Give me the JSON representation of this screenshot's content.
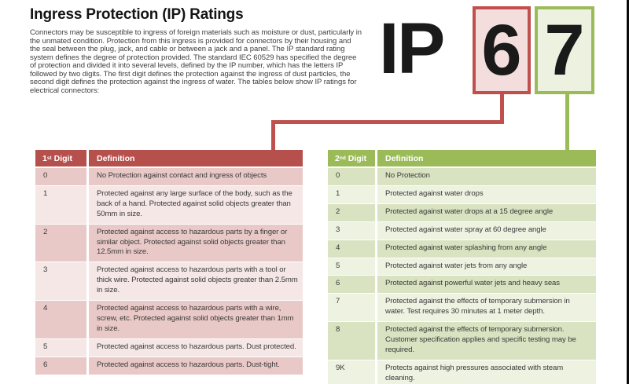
{
  "page": {
    "title": "Ingress Protection (IP) Ratings",
    "intro": "Connectors may be susceptible to ingress of foreign materials such as moisture or dust, particularly in the unmated condition.  Protection from this ingress is provided for connectors by their housing and the seal between the plug, jack, and cable or between a jack and a panel. The IP standard rating system defines the degree of protection provided. The standard IEC 60529 has specified the degree of protection and divided it into several levels, defined by the IP number, which has the letters IP followed by two digits.  The first digit defines the protection against the ingress of dust particles, the second digit defines the protection against the ingress of water. The tables below show IP ratings for electrical connectors:"
  },
  "ip_code": {
    "letter_i": "I",
    "letter_p": "P",
    "first_digit": "6",
    "second_digit": "7"
  },
  "colors": {
    "red_accent": "#c0504d",
    "red_header": "#b5504c",
    "red_band_dark": "#e9c9c7",
    "red_band_light": "#f5e7e6",
    "red_box_fill": "#f4dedd",
    "green_accent": "#9bbb59",
    "green_band_dark": "#d9e3c1",
    "green_band_light": "#edf2e1",
    "green_box_fill": "#edf2e0"
  },
  "first_digit_table": {
    "header": {
      "digit_num": "1",
      "digit_sup": "st",
      "digit_word": "Digit",
      "definition": "Definition"
    },
    "rows": [
      {
        "digit": "0",
        "definition": "No Protection against contact and ingress of objects"
      },
      {
        "digit": "1",
        "definition": "Protected against any large surface of the body, such as the back of a hand.  Protected against solid objects greater than 50mm in size."
      },
      {
        "digit": "2",
        "definition": "Protected against access to hazardous parts by a finger or similar object.  Protected against solid objects greater than 12.5mm in size."
      },
      {
        "digit": "3",
        "definition": "Protected against access to hazardous parts with a tool or thick wire.  Protected against solid objects greater than 2.5mm in size."
      },
      {
        "digit": "4",
        "definition": "Protected against access to hazardous parts with a wire, screw, etc.  Protected against solid objects greater than 1mm in size."
      },
      {
        "digit": "5",
        "definition": "Protected against access to hazardous parts.  Dust protected."
      },
      {
        "digit": "6",
        "definition": "Protected against access to hazardous parts.  Dust-tight."
      }
    ]
  },
  "second_digit_table": {
    "header": {
      "digit_num": "2",
      "digit_sup": "nd",
      "digit_word": "Digit",
      "definition": "Definition"
    },
    "rows": [
      {
        "digit": "0",
        "definition": "No Protection"
      },
      {
        "digit": "1",
        "definition": "Protected against water drops"
      },
      {
        "digit": "2",
        "definition": "Protected against water drops at a 15 degree angle"
      },
      {
        "digit": "3",
        "definition": "Protected against water spray at 60 degree angle"
      },
      {
        "digit": "4",
        "definition": "Protected against water splashing from any angle"
      },
      {
        "digit": "5",
        "definition": "Protected against water jets from any angle"
      },
      {
        "digit": "6",
        "definition": "Protected against powerful water jets and heavy seas"
      },
      {
        "digit": "7",
        "definition": "Protected against the effects of temporary submersion in water.  Test requires 30 minutes at 1 meter depth."
      },
      {
        "digit": "8",
        "definition": "Protected against the effects of temporary submersion. Customer specification applies and specific testing may be required."
      },
      {
        "digit": "9K",
        "definition": "Protects against high pressures associated with steam cleaning."
      }
    ]
  }
}
